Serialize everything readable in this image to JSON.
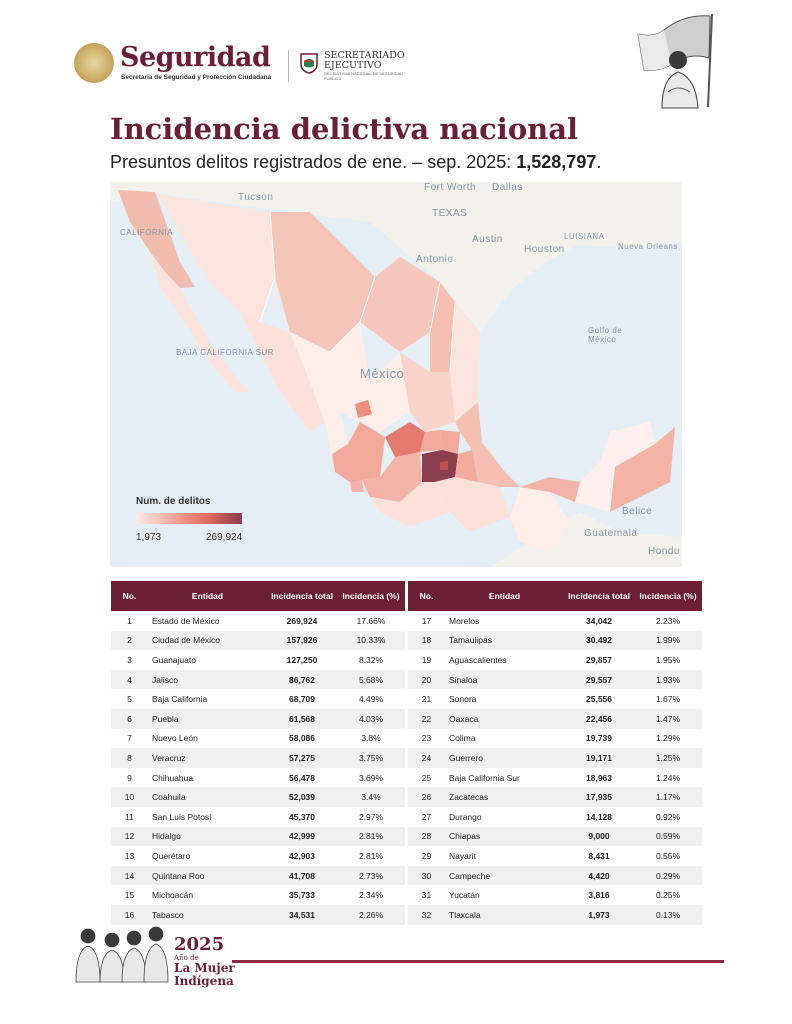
{
  "header": {
    "brand_title": "Seguridad",
    "brand_subtitle": "Secretaría de Seguridad y Protección Ciudadana",
    "agency_line1": "SECRETARIADO",
    "agency_line2": "EJECUTIVO",
    "agency_small": "DEL SISTEMA NACIONAL DE SEGURIDAD PÚBLICA"
  },
  "title": "Incidencia delictiva nacional",
  "subtitle_prefix": "Presuntos delitos registrados de ene. – sep. 2025: ",
  "subtitle_total": "1,528,797",
  "subtitle_suffix": ".",
  "map": {
    "place_labels": [
      "Tucson",
      "Fort Worth",
      "Dallas",
      "TEXAS",
      "Austin",
      "Houston",
      "LUISIANA",
      "Nueva Orleans",
      "Antonio",
      "CALIFORNIA",
      "BAJA CALIFORNIA SUR",
      "Golfo de México",
      "México",
      "Belice",
      "Guatemala",
      "Hondu"
    ],
    "legend_title": "Num. de delitos",
    "legend_min": "1,973",
    "legend_max": "269,924",
    "colors": {
      "low": "#fcecea",
      "mid": "#f4aa9e",
      "high": "#e06c63",
      "max": "#8c3d4e"
    }
  },
  "table_headers": {
    "no": "No.",
    "entity": "Entidad",
    "total": "Incidencia total",
    "pct": "Incidencia (%)"
  },
  "rows": [
    {
      "no": "1",
      "entity": "Estado de México",
      "total": "269,924",
      "pct": "17.66%"
    },
    {
      "no": "2",
      "entity": "Ciudad de México",
      "total": "157,926",
      "pct": "10.33%"
    },
    {
      "no": "3",
      "entity": "Guanajuato",
      "total": "127,250",
      "pct": "8.32%"
    },
    {
      "no": "4",
      "entity": "Jalisco",
      "total": "86,762",
      "pct": "5.68%"
    },
    {
      "no": "5",
      "entity": "Baja California",
      "total": "68,709",
      "pct": "4.49%"
    },
    {
      "no": "6",
      "entity": "Puebla",
      "total": "61,568",
      "pct": "4.03%"
    },
    {
      "no": "7",
      "entity": "Nuevo León",
      "total": "58,086",
      "pct": "3.8%"
    },
    {
      "no": "8",
      "entity": "Veracruz",
      "total": "57,275",
      "pct": "3.75%"
    },
    {
      "no": "9",
      "entity": "Chihuahua",
      "total": "56,478",
      "pct": "3.69%"
    },
    {
      "no": "10",
      "entity": "Coahuila",
      "total": "52,039",
      "pct": "3.4%"
    },
    {
      "no": "11",
      "entity": "San Luis Potosí",
      "total": "45,370",
      "pct": "2.97%"
    },
    {
      "no": "12",
      "entity": "Hidalgo",
      "total": "42,999",
      "pct": "2.81%"
    },
    {
      "no": "13",
      "entity": "Querétaro",
      "total": "42,903",
      "pct": "2.81%"
    },
    {
      "no": "14",
      "entity": "Quintana Roo",
      "total": "41,708",
      "pct": "2.73%"
    },
    {
      "no": "15",
      "entity": "Michoacán",
      "total": "35,733",
      "pct": "2.34%"
    },
    {
      "no": "16",
      "entity": "Tabasco",
      "total": "34,531",
      "pct": "2.26%"
    },
    {
      "no": "17",
      "entity": "Morelos",
      "total": "34,042",
      "pct": "2.23%"
    },
    {
      "no": "18",
      "entity": "Tamaulipas",
      "total": "30,492",
      "pct": "1.99%"
    },
    {
      "no": "19",
      "entity": "Aguascalientes",
      "total": "29,857",
      "pct": "1.95%"
    },
    {
      "no": "20",
      "entity": "Sinaloa",
      "total": "29,557",
      "pct": "1.93%"
    },
    {
      "no": "21",
      "entity": "Sonora",
      "total": "25,556",
      "pct": "1.67%"
    },
    {
      "no": "22",
      "entity": "Oaxaca",
      "total": "22,456",
      "pct": "1.47%"
    },
    {
      "no": "23",
      "entity": "Colima",
      "total": "19,739",
      "pct": "1.29%"
    },
    {
      "no": "24",
      "entity": "Guerrero",
      "total": "19,171",
      "pct": "1.25%"
    },
    {
      "no": "25",
      "entity": "Baja California Sur",
      "total": "18,963",
      "pct": "1.24%"
    },
    {
      "no": "26",
      "entity": "Zacatecas",
      "total": "17,935",
      "pct": "1.17%"
    },
    {
      "no": "27",
      "entity": "Durango",
      "total": "14,128",
      "pct": "0.92%"
    },
    {
      "no": "28",
      "entity": "Chiapas",
      "total": "9,000",
      "pct": "0.59%"
    },
    {
      "no": "29",
      "entity": "Nayarit",
      "total": "8,431",
      "pct": "0.55%"
    },
    {
      "no": "30",
      "entity": "Campeche",
      "total": "4,420",
      "pct": "0.29%"
    },
    {
      "no": "31",
      "entity": "Yucatán",
      "total": "3,816",
      "pct": "0.25%"
    },
    {
      "no": "32",
      "entity": "Tlaxcala",
      "total": "1,973",
      "pct": "0.13%"
    }
  ],
  "footer": {
    "year": "2025",
    "line2": "Año de",
    "line3": "La Mujer",
    "line4": "Indígena"
  }
}
